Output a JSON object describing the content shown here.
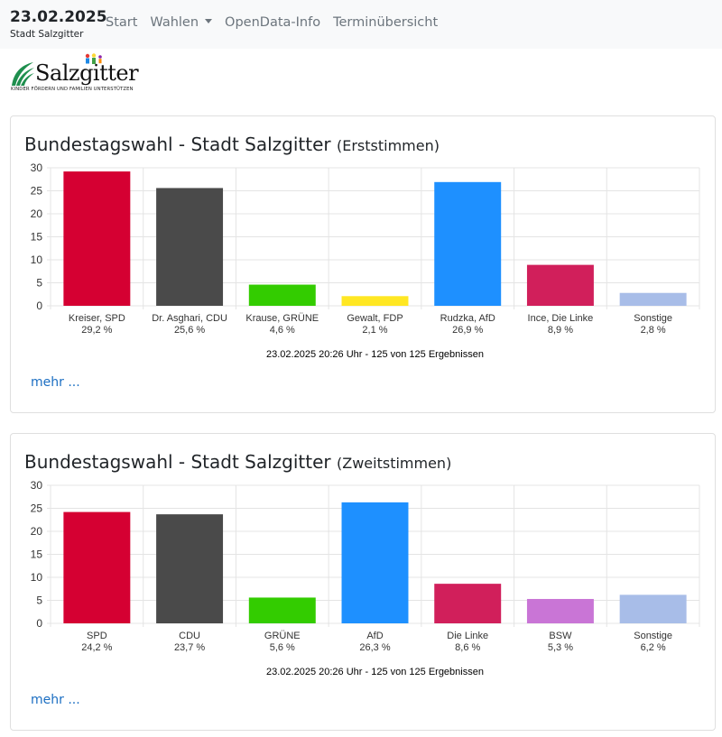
{
  "navbar": {
    "date": "23.02.2025",
    "subtitle": "Stadt Salzgitter",
    "items": [
      "Start",
      "Wahlen",
      "OpenData-Info",
      "Terminübersicht"
    ]
  },
  "logo": {
    "wordmark": "Salzgitter",
    "tagline": "KINDER FÖRDERN UND FAMILIEN UNTERSTÜTZEN"
  },
  "cards": [
    {
      "title": "Bundestagswahl - Stadt Salzgitter",
      "subtitle": "(Erststimmen)",
      "more": "mehr ..."
    },
    {
      "title": "Bundestagswahl - Stadt Salzgitter",
      "subtitle": "(Zweitstimmen)",
      "more": "mehr ..."
    }
  ],
  "chart_data": [
    {
      "type": "bar",
      "title": "Bundestagswahl - Stadt Salzgitter (Erststimmen)",
      "categories": [
        "Kreiser, SPD",
        "Dr. Asghari, CDU",
        "Krause, GRÜNE",
        "Gewalt, FDP",
        "Rudzka, AfD",
        "Ince, Die Linke",
        "Sonstige"
      ],
      "values": [
        29.2,
        25.6,
        4.6,
        2.1,
        26.9,
        8.9,
        2.8
      ],
      "value_labels": [
        "29,2 %",
        "25,6 %",
        "4,6 %",
        "2,1 %",
        "26,9 %",
        "8,9 %",
        "2,8 %"
      ],
      "colors": [
        "#d50032",
        "#4a4a4a",
        "#33cc00",
        "#ffe723",
        "#1e90ff",
        "#d11f5b",
        "#a8bde8"
      ],
      "yticks": [
        0,
        5,
        10,
        15,
        20,
        25,
        30
      ],
      "ylim": [
        0,
        30
      ],
      "footer": "23.02.2025 20:26 Uhr - 125 von 125 Ergebnissen"
    },
    {
      "type": "bar",
      "title": "Bundestagswahl - Stadt Salzgitter (Zweitstimmen)",
      "categories": [
        "SPD",
        "CDU",
        "GRÜNE",
        "AfD",
        "Die Linke",
        "BSW",
        "Sonstige"
      ],
      "values": [
        24.2,
        23.7,
        5.6,
        26.3,
        8.6,
        5.3,
        6.2
      ],
      "value_labels": [
        "24,2 %",
        "23,7 %",
        "5,6 %",
        "26,3 %",
        "8,6 %",
        "5,3 %",
        "6,2 %"
      ],
      "colors": [
        "#d50032",
        "#4a4a4a",
        "#33cc00",
        "#1e90ff",
        "#d11f5b",
        "#c975d6",
        "#a8bde8"
      ],
      "yticks": [
        0,
        5,
        10,
        15,
        20,
        25,
        30
      ],
      "ylim": [
        0,
        30
      ],
      "footer": "23.02.2025 20:26 Uhr - 125 von 125 Ergebnissen"
    }
  ]
}
